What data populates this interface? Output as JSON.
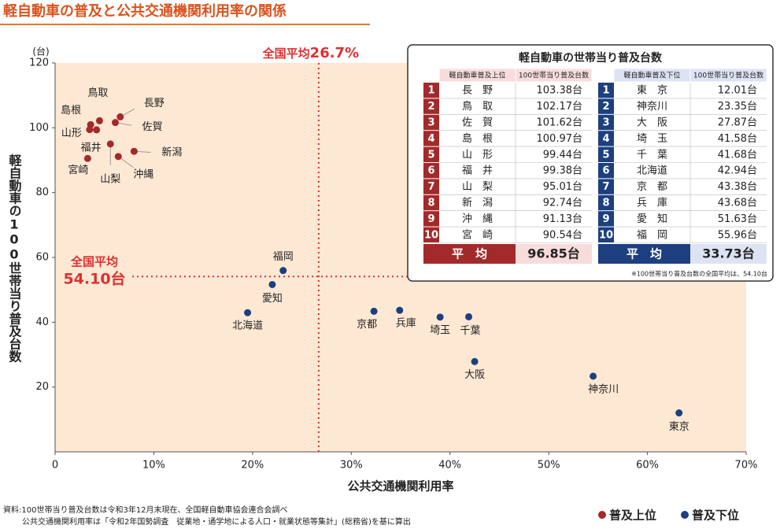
{
  "chart_data": {
    "type": "scatter",
    "title": "軽自動車の普及と公共交通機関利用率の関係",
    "x_label": "公共交通機関利用率",
    "y_label": "軽自動車の100世帯当り普及台数",
    "y_unit": "(台)",
    "xlim": [
      0,
      70
    ],
    "ylim": [
      0,
      120
    ],
    "xticks": [
      0,
      {
        "value": 10,
        "label": "10%"
      },
      {
        "value": 20,
        "label": "20%"
      },
      {
        "value": 30,
        "label": "30%"
      },
      {
        "value": 40,
        "label": "40%"
      },
      {
        "value": 50,
        "label": "50%"
      },
      {
        "value": 60,
        "label": "60%"
      },
      {
        "value": 70,
        "label": "70%"
      }
    ],
    "yticks": [
      20,
      40,
      60,
      80,
      100,
      120
    ],
    "x_average": {
      "prefix": "全国平均",
      "value": 26.7,
      "label": "26.7%"
    },
    "y_average": {
      "prefix": "全国平均",
      "value": 54.1,
      "label": "54.10台"
    },
    "series": [
      {
        "name": "普及上位",
        "color": "#a32a2a",
        "labels": [
          "長野",
          "鳥取",
          "佐賀",
          "島根",
          "山形",
          "福井",
          "山梨",
          "新潟",
          "沖縄",
          "宮崎"
        ],
        "x": [
          6.6,
          4.5,
          6.1,
          3.6,
          3.5,
          4.2,
          5.6,
          8.0,
          6.4,
          3.3
        ],
        "values": [
          103.38,
          102.17,
          101.62,
          100.97,
          99.44,
          99.38,
          95.01,
          92.74,
          91.13,
          90.54
        ]
      },
      {
        "name": "普及下位",
        "color": "#1d3f7f",
        "labels": [
          "東京",
          "神奈川",
          "大阪",
          "埼玉",
          "千葉",
          "北海道",
          "京都",
          "兵庫",
          "愛知",
          "福岡"
        ],
        "x": [
          63.2,
          54.5,
          42.5,
          39.0,
          41.9,
          19.5,
          32.3,
          34.9,
          22.0,
          23.1
        ],
        "values": [
          12.01,
          23.35,
          27.87,
          41.58,
          41.68,
          42.94,
          43.38,
          43.68,
          51.63,
          55.96
        ]
      }
    ],
    "source": [
      "資料:100世帯当り普及台数は令和3年12月末現在、全国軽自動車協会連合会調べ",
      "公共交通機関利用率は「令和2年国勢調査　従業地・通学地による人口・就業状態等集計」(総務省)を基に算出"
    ]
  },
  "inset_table": {
    "title": "軽自動車の世帯当り普及台数",
    "top": {
      "headers": [
        "軽自動車普及上位",
        "100世帯当り普及台数"
      ],
      "rows": [
        {
          "rank": 1,
          "name": "長　野",
          "value": "103.38台"
        },
        {
          "rank": 2,
          "name": "鳥　取",
          "value": "102.17台"
        },
        {
          "rank": 3,
          "name": "佐　賀",
          "value": "101.62台"
        },
        {
          "rank": 4,
          "name": "島　根",
          "value": "100.97台"
        },
        {
          "rank": 5,
          "name": "山　形",
          "value": "99.44台"
        },
        {
          "rank": 6,
          "name": "福　井",
          "value": "99.38台"
        },
        {
          "rank": 7,
          "name": "山　梨",
          "value": "95.01台"
        },
        {
          "rank": 8,
          "name": "新　潟",
          "value": "92.74台"
        },
        {
          "rank": 9,
          "name": "沖　縄",
          "value": "91.13台"
        },
        {
          "rank": 10,
          "name": "宮　崎",
          "value": "90.54台"
        }
      ],
      "average": {
        "label": "平　均",
        "value": "96.85台"
      }
    },
    "bottom": {
      "headers": [
        "軽自動車普及下位",
        "100世帯当り普及台数"
      ],
      "rows": [
        {
          "rank": 1,
          "name": "東　京",
          "value": "12.01台"
        },
        {
          "rank": 2,
          "name": "神奈川",
          "value": "23.35台"
        },
        {
          "rank": 3,
          "name": "大　阪",
          "value": "27.87台"
        },
        {
          "rank": 4,
          "name": "埼　玉",
          "value": "41.58台"
        },
        {
          "rank": 5,
          "name": "千　葉",
          "value": "41.68台"
        },
        {
          "rank": 6,
          "name": "北海道",
          "value": "42.94台"
        },
        {
          "rank": 7,
          "name": "京　都",
          "value": "43.38台"
        },
        {
          "rank": 8,
          "name": "兵　庫",
          "value": "43.68台"
        },
        {
          "rank": 9,
          "name": "愛　知",
          "value": "51.63台"
        },
        {
          "rank": 10,
          "name": "福　岡",
          "value": "55.96台"
        }
      ],
      "average": {
        "label": "平　均",
        "value": "33.73台"
      }
    },
    "note": "※100世帯当り普及台数の全国平均は、54.10台"
  }
}
